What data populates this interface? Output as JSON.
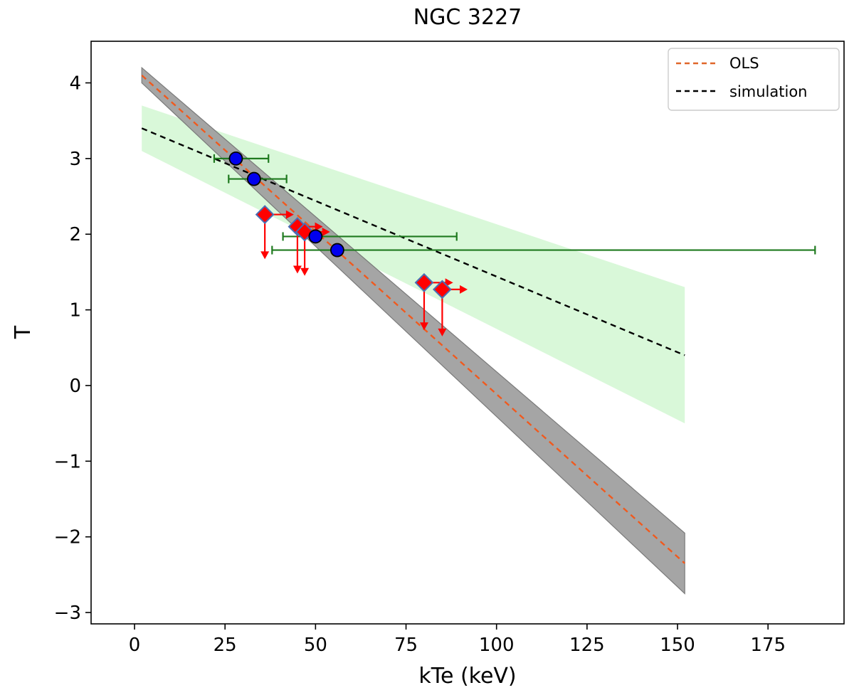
{
  "chart_data": {
    "type": "scatter",
    "title": "NGC 3227",
    "xlabel": "kTe (keV)",
    "ylabel": "T",
    "xlim": [
      -12,
      196
    ],
    "ylim": [
      -3.15,
      4.55
    ],
    "xticks": [
      0,
      25,
      50,
      75,
      100,
      125,
      150,
      175
    ],
    "xtick_labels": [
      "0",
      "25",
      "50",
      "75",
      "100",
      "125",
      "150",
      "175"
    ],
    "yticks": [
      -3,
      -2,
      -1,
      0,
      1,
      2,
      3,
      4
    ],
    "ytick_labels": [
      "−3",
      "−2",
      "−1",
      "0",
      "1",
      "2",
      "3",
      "4"
    ],
    "legend": {
      "position": "top-right",
      "entries": [
        {
          "label": "OLS",
          "color": "#e0662a",
          "style": "dashed"
        },
        {
          "label": "simulation",
          "color": "#000000",
          "style": "dashed"
        }
      ]
    },
    "ols_line": {
      "x": [
        2,
        152
      ],
      "y": [
        4.1,
        -2.35
      ],
      "color": "#f05a1e"
    },
    "ols_band": {
      "x": [
        2,
        152
      ],
      "upper": [
        4.2,
        -1.95
      ],
      "lower": [
        4.0,
        -2.75
      ],
      "color": "#a0a0a0"
    },
    "simulation_line": {
      "x": [
        2,
        152
      ],
      "y": [
        3.4,
        0.4
      ],
      "color": "#000000"
    },
    "simulation_band": {
      "x": [
        2,
        152
      ],
      "upper": [
        3.7,
        1.3
      ],
      "lower": [
        3.1,
        -0.5
      ],
      "color": "#ccf5cc"
    },
    "detections": {
      "marker": "circle",
      "color": "#0000ee",
      "points": [
        {
          "x": 28,
          "y": 3.0,
          "xerr_low": 22,
          "xerr_high": 37
        },
        {
          "x": 33,
          "y": 2.73,
          "xerr_low": 26,
          "xerr_high": 42
        },
        {
          "x": 50,
          "y": 1.97,
          "xerr_low": 41,
          "xerr_high": 89
        },
        {
          "x": 56,
          "y": 1.79,
          "xerr_low": 38,
          "xerr_high": 188
        }
      ]
    },
    "limits": {
      "marker": "diamond",
      "color": "#ff0000",
      "points": [
        {
          "x": 36,
          "y": 2.26,
          "x_arrow_to": 44,
          "y_arrow_to": 1.67
        },
        {
          "x": 45,
          "y": 2.1,
          "x_arrow_to": 52,
          "y_arrow_to": 1.48
        },
        {
          "x": 47,
          "y": 2.03,
          "x_arrow_to": 54,
          "y_arrow_to": 1.45
        },
        {
          "x": 80,
          "y": 1.36,
          "x_arrow_to": 88,
          "y_arrow_to": 0.73
        },
        {
          "x": 85,
          "y": 1.27,
          "x_arrow_to": 92,
          "y_arrow_to": 0.65
        }
      ]
    }
  }
}
